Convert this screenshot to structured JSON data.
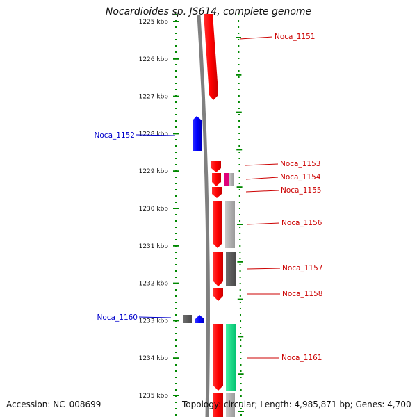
{
  "title": "Nocardioides sp. JS614, complete genome",
  "accession": "Accession: NC_008699",
  "topology": "Topology: circular; Length: 4,985,871 bp; Genes: 4,700",
  "ticks": [
    "1225 kbp",
    "1226 kbp",
    "1227 kbp",
    "1228 kbp",
    "1229 kbp",
    "1230 kbp",
    "1231 kbp",
    "1232 kbp",
    "1233 kbp",
    "1234 kbp",
    "1235 kbp"
  ],
  "genes": [
    {
      "label": "Noca_1151",
      "color": "#cc0000",
      "strand": "forward"
    },
    {
      "label": "Noca_1152",
      "color": "#0000cc",
      "strand": "reverse"
    },
    {
      "label": "Noca_1153",
      "color": "#cc0000",
      "strand": "forward"
    },
    {
      "label": "Noca_1154",
      "color": "#cc0000",
      "strand": "forward"
    },
    {
      "label": "Noca_1155",
      "color": "#cc0000",
      "strand": "forward"
    },
    {
      "label": "Noca_1156",
      "color": "#cc0000",
      "strand": "forward"
    },
    {
      "label": "Noca_1157",
      "color": "#cc0000",
      "strand": "forward"
    },
    {
      "label": "Noca_1158",
      "color": "#cc0000",
      "strand": "forward"
    },
    {
      "label": "Noca_1160",
      "color": "#0000cc",
      "strand": "reverse"
    },
    {
      "label": "Noca_1161",
      "color": "#cc0000",
      "strand": "forward"
    }
  ],
  "colors": {
    "forward_gene": "#ff0000",
    "reverse_gene": "#0000ff",
    "scale_ticks": "#008800",
    "genome_line": "#808080"
  }
}
